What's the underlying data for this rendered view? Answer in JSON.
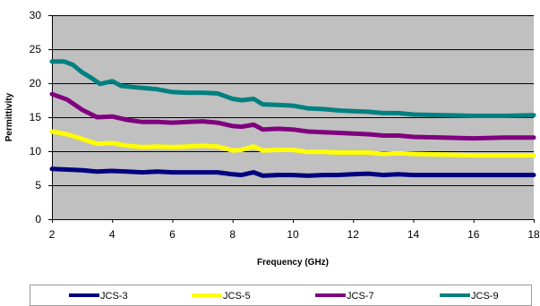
{
  "chart_data": {
    "type": "line",
    "title": "",
    "xlabel": "Frequency (GHz)",
    "ylabel": "Permittivity",
    "xlim": [
      2,
      18
    ],
    "ylim": [
      0,
      30
    ],
    "xticks": [
      2,
      4,
      6,
      8,
      10,
      12,
      14,
      16,
      18
    ],
    "yticks": [
      0,
      5,
      10,
      15,
      20,
      25,
      30
    ],
    "grid": "horizontal",
    "plot_background": "#c0c0c0",
    "legend_position": "bottom",
    "series": [
      {
        "name": "JCS-3",
        "color": "#000080",
        "points": [
          [
            2.0,
            7.4
          ],
          [
            2.5,
            7.3
          ],
          [
            3.0,
            7.2
          ],
          [
            3.5,
            7.0
          ],
          [
            4.0,
            7.1
          ],
          [
            4.5,
            7.0
          ],
          [
            5.0,
            6.9
          ],
          [
            5.5,
            7.0
          ],
          [
            6.0,
            6.9
          ],
          [
            6.5,
            6.9
          ],
          [
            7.0,
            6.9
          ],
          [
            7.5,
            6.9
          ],
          [
            8.0,
            6.6
          ],
          [
            8.3,
            6.5
          ],
          [
            8.7,
            6.9
          ],
          [
            9.0,
            6.4
          ],
          [
            9.5,
            6.5
          ],
          [
            10.0,
            6.5
          ],
          [
            10.5,
            6.4
          ],
          [
            11.0,
            6.5
          ],
          [
            11.5,
            6.5
          ],
          [
            12.0,
            6.6
          ],
          [
            12.5,
            6.7
          ],
          [
            13.0,
            6.5
          ],
          [
            13.5,
            6.6
          ],
          [
            14.0,
            6.5
          ],
          [
            15.0,
            6.5
          ],
          [
            16.0,
            6.5
          ],
          [
            17.0,
            6.5
          ],
          [
            18.0,
            6.5
          ]
        ]
      },
      {
        "name": "JCS-5",
        "color": "#ffff00",
        "points": [
          [
            2.0,
            12.9
          ],
          [
            2.5,
            12.5
          ],
          [
            3.0,
            11.8
          ],
          [
            3.5,
            11.1
          ],
          [
            4.0,
            11.2
          ],
          [
            4.5,
            10.8
          ],
          [
            5.0,
            10.6
          ],
          [
            5.5,
            10.7
          ],
          [
            6.0,
            10.6
          ],
          [
            6.5,
            10.7
          ],
          [
            7.0,
            10.8
          ],
          [
            7.5,
            10.7
          ],
          [
            8.0,
            10.1
          ],
          [
            8.3,
            10.2
          ],
          [
            8.7,
            10.7
          ],
          [
            9.0,
            10.1
          ],
          [
            9.5,
            10.2
          ],
          [
            10.0,
            10.2
          ],
          [
            10.5,
            9.9
          ],
          [
            11.0,
            9.9
          ],
          [
            11.5,
            9.8
          ],
          [
            12.0,
            9.8
          ],
          [
            12.5,
            9.8
          ],
          [
            13.0,
            9.6
          ],
          [
            13.5,
            9.7
          ],
          [
            14.0,
            9.6
          ],
          [
            15.0,
            9.5
          ],
          [
            16.0,
            9.4
          ],
          [
            17.0,
            9.4
          ],
          [
            18.0,
            9.4
          ]
        ]
      },
      {
        "name": "JCS-7",
        "color": "#800080",
        "points": [
          [
            2.0,
            18.4
          ],
          [
            2.5,
            17.6
          ],
          [
            3.0,
            16.1
          ],
          [
            3.5,
            15.0
          ],
          [
            4.0,
            15.1
          ],
          [
            4.5,
            14.6
          ],
          [
            5.0,
            14.3
          ],
          [
            5.5,
            14.3
          ],
          [
            6.0,
            14.2
          ],
          [
            6.5,
            14.3
          ],
          [
            7.0,
            14.4
          ],
          [
            7.5,
            14.2
          ],
          [
            8.0,
            13.7
          ],
          [
            8.3,
            13.6
          ],
          [
            8.7,
            13.9
          ],
          [
            9.0,
            13.2
          ],
          [
            9.5,
            13.3
          ],
          [
            10.0,
            13.2
          ],
          [
            10.5,
            12.9
          ],
          [
            11.0,
            12.8
          ],
          [
            11.5,
            12.7
          ],
          [
            12.0,
            12.6
          ],
          [
            12.5,
            12.5
          ],
          [
            13.0,
            12.3
          ],
          [
            13.5,
            12.3
          ],
          [
            14.0,
            12.1
          ],
          [
            15.0,
            12.0
          ],
          [
            16.0,
            11.9
          ],
          [
            17.0,
            12.0
          ],
          [
            18.0,
            12.0
          ]
        ]
      },
      {
        "name": "JCS-9",
        "color": "#008080",
        "points": [
          [
            2.0,
            23.2
          ],
          [
            2.4,
            23.2
          ],
          [
            2.7,
            22.7
          ],
          [
            3.0,
            21.6
          ],
          [
            3.3,
            20.8
          ],
          [
            3.6,
            19.9
          ],
          [
            4.0,
            20.3
          ],
          [
            4.3,
            19.6
          ],
          [
            5.0,
            19.3
          ],
          [
            5.5,
            19.1
          ],
          [
            6.0,
            18.7
          ],
          [
            6.5,
            18.6
          ],
          [
            7.0,
            18.6
          ],
          [
            7.5,
            18.5
          ],
          [
            8.0,
            17.7
          ],
          [
            8.3,
            17.5
          ],
          [
            8.7,
            17.7
          ],
          [
            9.0,
            16.9
          ],
          [
            9.5,
            16.8
          ],
          [
            10.0,
            16.7
          ],
          [
            10.5,
            16.3
          ],
          [
            11.0,
            16.2
          ],
          [
            11.5,
            16.0
          ],
          [
            12.0,
            15.9
          ],
          [
            12.5,
            15.8
          ],
          [
            13.0,
            15.6
          ],
          [
            13.5,
            15.6
          ],
          [
            14.0,
            15.4
          ],
          [
            15.0,
            15.3
          ],
          [
            16.0,
            15.2
          ],
          [
            17.0,
            15.2
          ],
          [
            18.0,
            15.3
          ]
        ]
      }
    ]
  }
}
